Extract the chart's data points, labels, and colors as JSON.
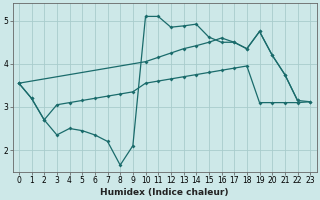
{
  "xlabel": "Humidex (Indice chaleur)",
  "bg_color": "#cde8e8",
  "grid_color": "#a8cccc",
  "line_color": "#1a6b6b",
  "xlim": [
    -0.5,
    23.5
  ],
  "ylim": [
    1.5,
    5.4
  ],
  "xticks": [
    0,
    1,
    2,
    3,
    4,
    5,
    6,
    7,
    8,
    9,
    10,
    11,
    12,
    13,
    14,
    15,
    16,
    17,
    18,
    19,
    20,
    21,
    22,
    23
  ],
  "yticks": [
    2,
    3,
    4,
    5
  ],
  "line1_x": [
    0,
    1,
    2,
    3,
    4,
    5,
    6,
    7,
    8,
    9,
    10,
    11,
    12,
    13,
    14,
    15,
    16,
    17,
    18,
    19,
    20,
    21,
    22
  ],
  "line1_y": [
    3.55,
    3.2,
    2.7,
    2.35,
    2.5,
    2.45,
    2.35,
    2.2,
    1.65,
    2.1,
    5.1,
    5.1,
    4.85,
    4.88,
    4.92,
    4.62,
    4.5,
    4.5,
    4.35,
    4.75,
    4.2,
    3.75,
    3.15
  ],
  "line2_x": [
    0,
    1,
    2,
    3,
    4,
    5,
    6,
    7,
    8,
    9,
    10,
    11,
    12,
    13,
    14,
    15,
    16,
    17,
    18,
    19,
    20,
    21,
    22,
    23
  ],
  "line2_y": [
    3.55,
    3.2,
    2.7,
    3.05,
    3.1,
    3.15,
    3.2,
    3.25,
    3.3,
    3.35,
    3.55,
    3.6,
    3.65,
    3.7,
    3.75,
    3.8,
    3.85,
    3.9,
    3.95,
    3.1,
    3.1,
    3.1,
    3.1,
    3.12
  ],
  "line3_x": [
    0,
    10,
    11,
    12,
    13,
    14,
    15,
    16,
    17,
    18,
    19,
    20,
    21,
    22,
    23
  ],
  "line3_y": [
    3.55,
    4.05,
    4.15,
    4.25,
    4.35,
    4.42,
    4.5,
    4.6,
    4.5,
    4.35,
    4.75,
    4.2,
    3.75,
    3.15,
    3.12
  ]
}
